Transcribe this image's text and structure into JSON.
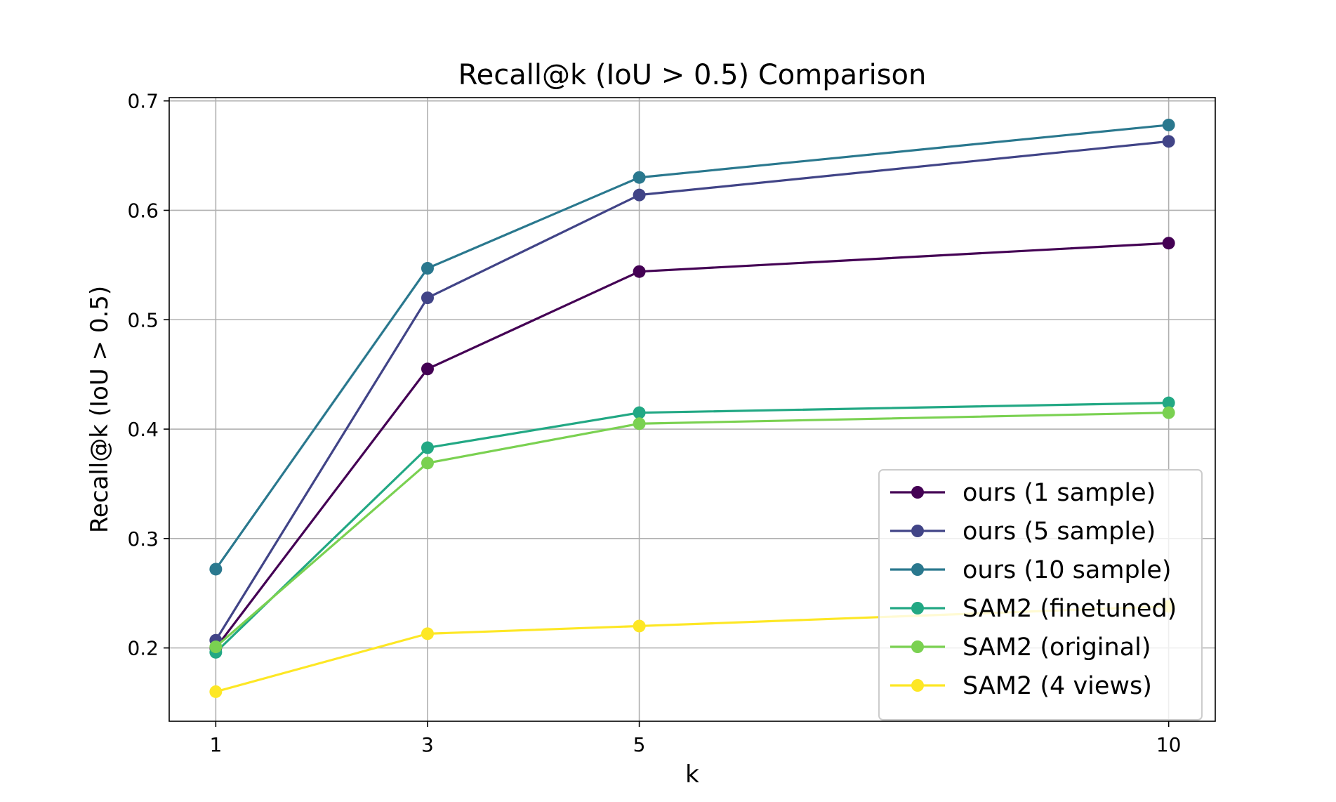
{
  "chart_data": {
    "type": "line",
    "title": "Recall@k (IoU > 0.5) Comparison",
    "xlabel": "k",
    "ylabel": "Recall@k (IoU > 0.5)",
    "x": [
      1,
      3,
      5,
      10
    ],
    "x_tick_labels": [
      "1",
      "3",
      "5",
      "10"
    ],
    "xlim": [
      0.56,
      10.44
    ],
    "ylim": [
      0.133,
      0.703
    ],
    "y_ticks": [
      0.2,
      0.3,
      0.4,
      0.5,
      0.6,
      0.7
    ],
    "y_tick_labels": [
      "0.2",
      "0.3",
      "0.4",
      "0.5",
      "0.6",
      "0.7"
    ],
    "grid": true,
    "legend_position": "lower-right",
    "marker": "circle",
    "series": [
      {
        "name": "ours (1 sample)",
        "color": "#440154",
        "values": [
          0.2,
          0.455,
          0.544,
          0.57
        ]
      },
      {
        "name": "ours (5 sample)",
        "color": "#414487",
        "values": [
          0.207,
          0.52,
          0.614,
          0.663
        ]
      },
      {
        "name": "ours (10 sample)",
        "color": "#2a788e",
        "values": [
          0.272,
          0.547,
          0.63,
          0.678
        ]
      },
      {
        "name": "SAM2 (finetuned)",
        "color": "#22a884",
        "values": [
          0.196,
          0.383,
          0.415,
          0.424
        ]
      },
      {
        "name": "SAM2 (original)",
        "color": "#7ad151",
        "values": [
          0.201,
          0.369,
          0.405,
          0.415
        ]
      },
      {
        "name": "SAM2 (4 views)",
        "color": "#fde725",
        "values": [
          0.16,
          0.213,
          0.22,
          0.238
        ]
      }
    ]
  }
}
